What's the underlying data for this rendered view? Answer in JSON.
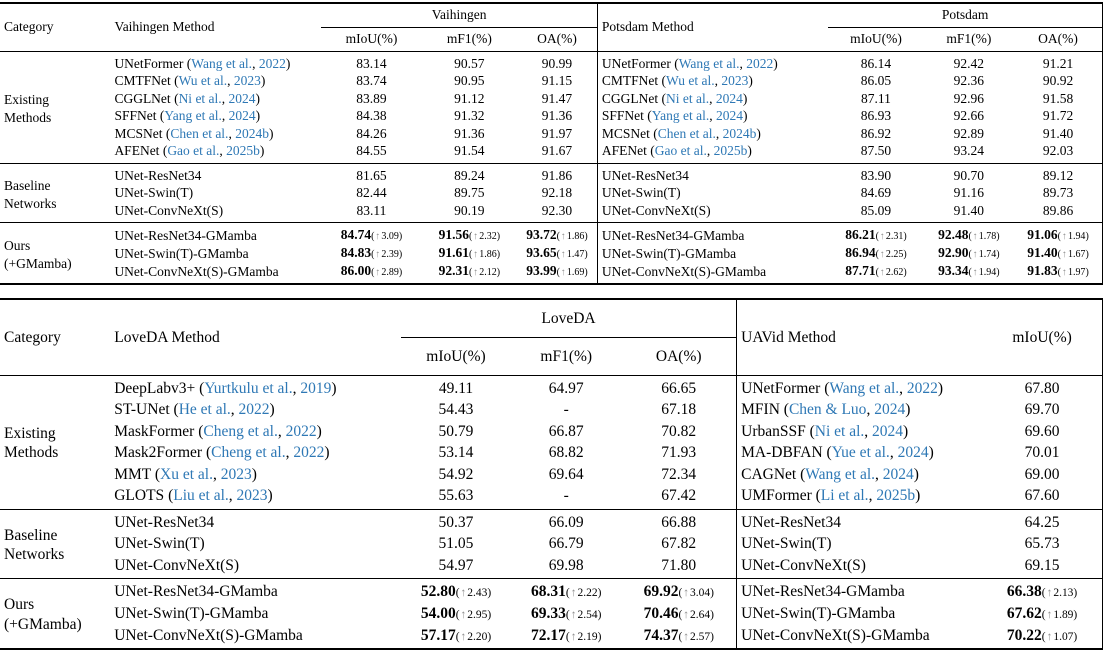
{
  "punct": {
    "open": " (",
    "sep": ", ",
    "close": ")",
    "dpre": "(",
    "arrow": "↑",
    "dpost": ")"
  },
  "colors": {
    "citation_blue": "#2e78b5",
    "arrow_gray": "#8f8f8f",
    "rule_black": "#000000"
  },
  "t1": {
    "category_header": "Category",
    "left": {
      "method_header": "Vaihingen Method",
      "dataset_header": "Vaihingen",
      "metric_headers": [
        "mIoU(%)",
        "mF1(%)",
        "OA(%)"
      ]
    },
    "right": {
      "method_header": "Potsdam Method",
      "dataset_header": "Potsdam",
      "metric_headers": [
        "mIoU(%)",
        "mF1(%)",
        "OA(%)"
      ]
    },
    "groups": [
      {
        "category": "Existing\nMethods",
        "rows": [
          {
            "left": {
              "name": "UNetFormer",
              "authors": "Wang et al.",
              "year": "2022",
              "vals": [
                "83.14",
                "90.57",
                "90.99"
              ]
            },
            "right": {
              "name": "UNetFormer",
              "authors": "Wang et al.",
              "year": "2022",
              "vals": [
                "86.14",
                "92.42",
                "91.21"
              ]
            }
          },
          {
            "left": {
              "name": "CMTFNet",
              "authors": "Wu et al.",
              "year": "2023",
              "vals": [
                "83.74",
                "90.95",
                "91.15"
              ]
            },
            "right": {
              "name": "CMTFNet",
              "authors": "Wu et al.",
              "year": "2023",
              "vals": [
                "86.05",
                "92.36",
                "90.92"
              ]
            }
          },
          {
            "left": {
              "name": "CGGLNet",
              "authors": "Ni et al.",
              "year": "2024",
              "vals": [
                "83.89",
                "91.12",
                "91.47"
              ]
            },
            "right": {
              "name": "CGGLNet",
              "authors": "Ni et al.",
              "year": "2024",
              "vals": [
                "87.11",
                "92.96",
                "91.58"
              ]
            }
          },
          {
            "left": {
              "name": "SFFNet",
              "authors": "Yang et al.",
              "year": "2024",
              "vals": [
                "84.38",
                "91.32",
                "91.36"
              ]
            },
            "right": {
              "name": "SFFNet",
              "authors": "Yang et al.",
              "year": "2024",
              "vals": [
                "86.93",
                "92.66",
                "91.72"
              ]
            }
          },
          {
            "left": {
              "name": "MCSNet",
              "authors": "Chen et al.",
              "year": "2024b",
              "vals": [
                "84.26",
                "91.36",
                "91.97"
              ]
            },
            "right": {
              "name": "MCSNet",
              "authors": "Chen et al.",
              "year": "2024b",
              "vals": [
                "86.92",
                "92.89",
                "91.40"
              ]
            }
          },
          {
            "left": {
              "name": "AFENet",
              "authors": "Gao et al.",
              "year": "2025b",
              "vals": [
                "84.55",
                "91.54",
                "91.67"
              ]
            },
            "right": {
              "name": "AFENet",
              "authors": "Gao et al.",
              "year": "2025b",
              "vals": [
                "87.50",
                "93.24",
                "92.03"
              ]
            }
          }
        ]
      },
      {
        "category": "Baseline\nNetworks",
        "rows": [
          {
            "left": {
              "name": "UNet-ResNet34",
              "vals": [
                "81.65",
                "89.24",
                "91.86"
              ]
            },
            "right": {
              "name": "UNet-ResNet34",
              "vals": [
                "83.90",
                "90.70",
                "89.12"
              ]
            }
          },
          {
            "left": {
              "name": "UNet-Swin(T)",
              "vals": [
                "82.44",
                "89.75",
                "92.18"
              ]
            },
            "right": {
              "name": "UNet-Swin(T)",
              "vals": [
                "84.69",
                "91.16",
                "89.73"
              ]
            }
          },
          {
            "left": {
              "name": "UNet-ConvNeXt(S)",
              "vals": [
                "83.11",
                "90.19",
                "92.30"
              ]
            },
            "right": {
              "name": "UNet-ConvNeXt(S)",
              "vals": [
                "85.09",
                "91.40",
                "89.86"
              ]
            }
          }
        ]
      },
      {
        "category": "Ours\n(+GMamba)",
        "rows": [
          {
            "left": {
              "name": "UNet-ResNet34-GMamba",
              "vals": [
                {
                  "v": "84.74",
                  "d": "3.09"
                },
                {
                  "v": "91.56",
                  "d": "2.32"
                },
                {
                  "v": "93.72",
                  "d": "1.86"
                }
              ]
            },
            "right": {
              "name": "UNet-ResNet34-GMamba",
              "vals": [
                {
                  "v": "86.21",
                  "d": "2.31"
                },
                {
                  "v": "92.48",
                  "d": "1.78"
                },
                {
                  "v": "91.06",
                  "d": "1.94"
                }
              ]
            }
          },
          {
            "left": {
              "name": "UNet-Swin(T)-GMamba",
              "vals": [
                {
                  "v": "84.83",
                  "d": "2.39"
                },
                {
                  "v": "91.61",
                  "d": "1.86"
                },
                {
                  "v": "93.65",
                  "d": "1.47"
                }
              ]
            },
            "right": {
              "name": "UNet-Swin(T)-GMamba",
              "vals": [
                {
                  "v": "86.94",
                  "d": "2.25"
                },
                {
                  "v": "92.90",
                  "d": "1.74"
                },
                {
                  "v": "91.40",
                  "d": "1.67"
                }
              ]
            }
          },
          {
            "left": {
              "name": "UNet-ConvNeXt(S)-GMamba",
              "vals": [
                {
                  "v": "86.00",
                  "d": "2.89"
                },
                {
                  "v": "92.31",
                  "d": "2.12"
                },
                {
                  "v": "93.99",
                  "d": "1.69"
                }
              ]
            },
            "right": {
              "name": "UNet-ConvNeXt(S)-GMamba",
              "vals": [
                {
                  "v": "87.71",
                  "d": "2.62"
                },
                {
                  "v": "93.34",
                  "d": "1.94"
                },
                {
                  "v": "91.83",
                  "d": "1.97"
                }
              ]
            }
          }
        ]
      }
    ]
  },
  "t2": {
    "category_header": "Category",
    "left": {
      "method_header": "LoveDA Method",
      "dataset_header": "LoveDA",
      "metric_headers": [
        "mIoU(%)",
        "mF1(%)",
        "OA(%)"
      ]
    },
    "right": {
      "method_header": "UAVid Method",
      "dataset_header": null,
      "metric_headers": [
        "mIoU(%)"
      ]
    },
    "groups": [
      {
        "category": "Existing\nMethods",
        "rows": [
          {
            "left": {
              "name": "DeepLabv3+",
              "authors": "Yurtkulu et al.",
              "year": "2019",
              "vals": [
                "49.11",
                "64.97",
                "66.65"
              ]
            },
            "right": {
              "name": "UNetFormer",
              "authors": "Wang et al.",
              "year": "2022",
              "vals": [
                "67.80"
              ]
            }
          },
          {
            "left": {
              "name": "ST-UNet",
              "authors": "He et al.",
              "year": "2022",
              "vals": [
                "54.43",
                "-",
                "67.18"
              ]
            },
            "right": {
              "name": "MFIN",
              "authors": "Chen & Luo",
              "year": "2024",
              "vals": [
                "69.70"
              ]
            }
          },
          {
            "left": {
              "name": "MaskFormer",
              "authors": "Cheng et al.",
              "year": "2022",
              "vals": [
                "50.79",
                "66.87",
                "70.82"
              ]
            },
            "right": {
              "name": "UrbanSSF",
              "authors": "Ni et al.",
              "year": "2024",
              "vals": [
                "69.60"
              ]
            }
          },
          {
            "left": {
              "name": "Mask2Former",
              "authors": "Cheng et al.",
              "year": "2022",
              "vals": [
                "53.14",
                "68.82",
                "71.93"
              ]
            },
            "right": {
              "name": "MA-DBFAN",
              "authors": "Yue et al.",
              "year": "2024",
              "vals": [
                "70.01"
              ]
            }
          },
          {
            "left": {
              "name": "MMT",
              "authors": "Xu et al.",
              "year": "2023",
              "vals": [
                "54.92",
                "69.64",
                "72.34"
              ]
            },
            "right": {
              "name": "CAGNet",
              "authors": "Wang et al.",
              "year": "2024",
              "vals": [
                "69.00"
              ]
            }
          },
          {
            "left": {
              "name": "GLOTS",
              "authors": "Liu et al.",
              "year": "2023",
              "vals": [
                "55.63",
                "-",
                "67.42"
              ]
            },
            "right": {
              "name": "UMFormer",
              "authors": "Li et al.",
              "year": "2025b",
              "vals": [
                "67.60"
              ]
            }
          }
        ]
      },
      {
        "category": "Baseline\nNetworks",
        "rows": [
          {
            "left": {
              "name": "UNet-ResNet34",
              "vals": [
                "50.37",
                "66.09",
                "66.88"
              ]
            },
            "right": {
              "name": "UNet-ResNet34",
              "vals": [
                "64.25"
              ]
            }
          },
          {
            "left": {
              "name": "UNet-Swin(T)",
              "vals": [
                "51.05",
                "66.79",
                "67.82"
              ]
            },
            "right": {
              "name": "UNet-Swin(T)",
              "vals": [
                "65.73"
              ]
            }
          },
          {
            "left": {
              "name": "UNet-ConvNeXt(S)",
              "vals": [
                "54.97",
                "69.98",
                "71.80"
              ]
            },
            "right": {
              "name": "UNet-ConvNeXt(S)",
              "vals": [
                "69.15"
              ]
            }
          }
        ]
      },
      {
        "category": "Ours\n(+GMamba)",
        "rows": [
          {
            "left": {
              "name": "UNet-ResNet34-GMamba",
              "vals": [
                {
                  "v": "52.80",
                  "d": "2.43"
                },
                {
                  "v": "68.31",
                  "d": "2.22"
                },
                {
                  "v": "69.92",
                  "d": "3.04"
                }
              ]
            },
            "right": {
              "name": "UNet-ResNet34-GMamba",
              "vals": [
                {
                  "v": "66.38",
                  "d": "2.13"
                }
              ]
            }
          },
          {
            "left": {
              "name": "UNet-Swin(T)-GMamba",
              "vals": [
                {
                  "v": "54.00",
                  "d": "2.95"
                },
                {
                  "v": "69.33",
                  "d": "2.54"
                },
                {
                  "v": "70.46",
                  "d": "2.64"
                }
              ]
            },
            "right": {
              "name": "UNet-Swin(T)-GMamba",
              "vals": [
                {
                  "v": "67.62",
                  "d": "1.89"
                }
              ]
            }
          },
          {
            "left": {
              "name": "UNet-ConvNeXt(S)-GMamba",
              "vals": [
                {
                  "v": "57.17",
                  "d": "2.20"
                },
                {
                  "v": "72.17",
                  "d": "2.19"
                },
                {
                  "v": "74.37",
                  "d": "2.57"
                }
              ]
            },
            "right": {
              "name": "UNet-ConvNeXt(S)-GMamba",
              "vals": [
                {
                  "v": "70.22",
                  "d": "1.07"
                }
              ]
            }
          }
        ]
      }
    ]
  }
}
